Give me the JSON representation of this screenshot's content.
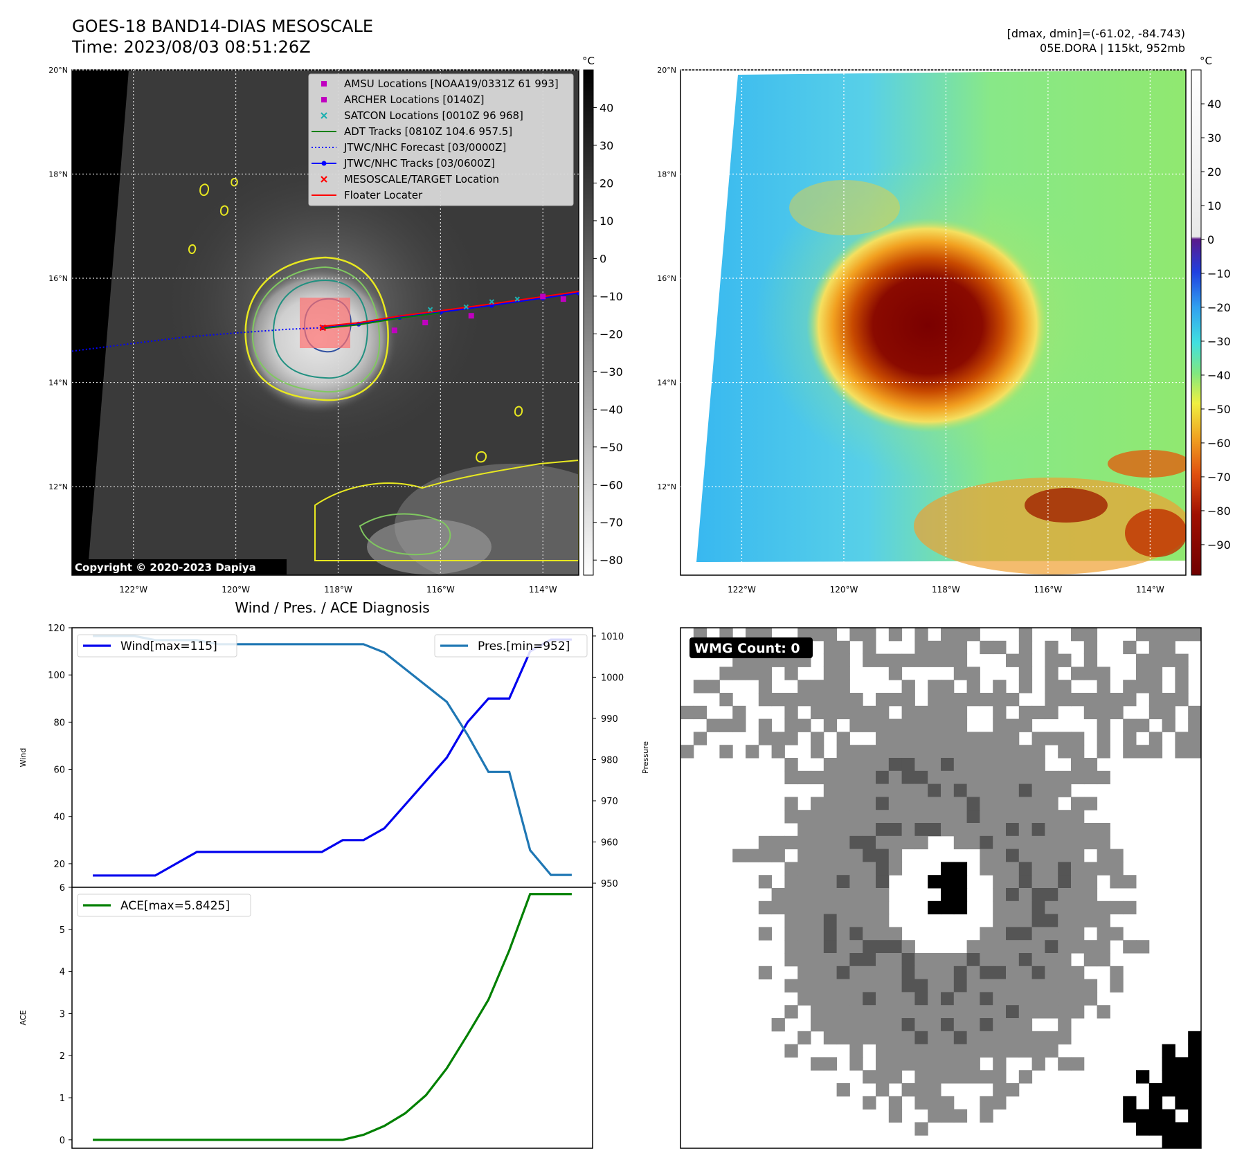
{
  "header": {
    "title_line1": "GOES-18 BAND14-DIAS MESOSCALE",
    "title_line2": "Time: 2023/08/03 08:51:26Z",
    "right_line1": "[dmax, dmin]=(-61.02, -84.743)",
    "right_line2": "05E.DORA | 115kt, 952mb"
  },
  "map": {
    "lat_labels": [
      "20°N",
      "18°N",
      "16°N",
      "14°N",
      "12°N"
    ],
    "lat_values": [
      20,
      18,
      16,
      14,
      12
    ],
    "lon_labels": [
      "122°W",
      "120°W",
      "118°W",
      "116°W",
      "114°W"
    ],
    "lon_values": [
      -122,
      -120,
      -118,
      -116,
      -114
    ],
    "lat_range": [
      10.3,
      20.0
    ],
    "lon_range": [
      -123.2,
      -113.3
    ],
    "copyright": "Copyright © 2020-2023 Dapiya"
  },
  "colorbar_gray": {
    "unit": "°C",
    "ticks": [
      "40",
      "30",
      "20",
      "10",
      "0",
      "−10",
      "−20",
      "−30",
      "−40",
      "−50",
      "−60",
      "−70",
      "−80"
    ],
    "tick_values": [
      40,
      30,
      20,
      10,
      0,
      -10,
      -20,
      -30,
      -40,
      -50,
      -60,
      -70,
      -80
    ],
    "range": [
      -84,
      50
    ]
  },
  "colorbar_color": {
    "unit": "°C",
    "ticks": [
      "40",
      "30",
      "20",
      "10",
      "0",
      "−10",
      "−20",
      "−30",
      "−40",
      "−50",
      "−60",
      "−70",
      "−80",
      "−90"
    ],
    "tick_values": [
      40,
      30,
      20,
      10,
      0,
      -10,
      -20,
      -30,
      -40,
      -50,
      -60,
      -70,
      -80,
      -90
    ],
    "range": [
      -99,
      50
    ]
  },
  "legend": [
    {
      "label": "AMSU Locations [NOAA19/0331Z 61 993]",
      "marker": "square",
      "color": "#c000c0"
    },
    {
      "label": "ARCHER Locations [0140Z]",
      "marker": "square",
      "color": "#c000c0"
    },
    {
      "label": "SATCON Locations [0010Z 96 968]",
      "marker": "x",
      "color": "#20b0b0"
    },
    {
      "label": "ADT Tracks [0810Z 104.6 957.5]",
      "marker": "line",
      "color": "#008000"
    },
    {
      "label": "JTWC/NHC Forecast [03/0000Z]",
      "marker": "dotted",
      "color": "#0000ff"
    },
    {
      "label": "JTWC/NHC Tracks [03/0600Z]",
      "marker": "line-dot",
      "color": "#0000ff"
    },
    {
      "label": "MESOSCALE/TARGET Location",
      "marker": "x",
      "color": "#ff0000"
    },
    {
      "label": "Floater Locater",
      "marker": "line",
      "color": "#ff0000"
    }
  ],
  "chart_data": [
    {
      "type": "line",
      "title": "Wind / Pres. / ACE Diagnosis",
      "ylabel": "Wind",
      "y2label": "Pressure",
      "ylim": [
        10,
        120
      ],
      "y2lim": [
        949,
        1012
      ],
      "yticks": [
        20,
        40,
        60,
        80,
        100,
        120
      ],
      "y2ticks": [
        950,
        960,
        970,
        980,
        990,
        1000,
        1010
      ],
      "x": [
        0,
        1,
        2,
        3,
        4,
        5,
        6,
        7,
        8,
        9,
        10,
        11,
        12,
        13,
        14,
        15,
        16,
        17,
        18,
        19,
        20,
        21,
        22,
        23
      ],
      "xlim": [
        -1,
        24
      ],
      "series": [
        {
          "name": "Wind[max=115]",
          "color": "#0000ee",
          "axis": "left",
          "values": [
            15,
            15,
            15,
            15,
            20,
            25,
            25,
            25,
            25,
            25,
            25,
            25,
            30,
            30,
            35,
            45,
            55,
            65,
            80,
            90,
            90,
            110,
            115,
            115
          ]
        },
        {
          "name": "Pres.[min=952]",
          "color": "#1f77b4",
          "axis": "right",
          "values": [
            1010,
            1010,
            1010,
            1009,
            1009,
            1009,
            1008,
            1008,
            1008,
            1008,
            1008,
            1008,
            1008,
            1008,
            1006,
            1002,
            998,
            994,
            986,
            977,
            977,
            958,
            952,
            952
          ]
        }
      ]
    },
    {
      "type": "line",
      "ylabel": "ACE",
      "ylim": [
        -0.2,
        6
      ],
      "yticks": [
        0,
        1,
        2,
        3,
        4,
        5,
        6
      ],
      "x": [
        0,
        1,
        2,
        3,
        4,
        5,
        6,
        7,
        8,
        9,
        10,
        11,
        12,
        13,
        14,
        15,
        16,
        17,
        18,
        19,
        20,
        21,
        22,
        23
      ],
      "xlim": [
        -1,
        24
      ],
      "series": [
        {
          "name": "ACE[max=5.8425]",
          "color": "#008000",
          "values": [
            0,
            0,
            0,
            0,
            0,
            0,
            0,
            0,
            0,
            0,
            0,
            0,
            0,
            0.12,
            0.33,
            0.63,
            1.06,
            1.7,
            2.5,
            3.33,
            4.5,
            5.84,
            5.84,
            5.84
          ]
        }
      ]
    }
  ],
  "wmg": {
    "badge": "WMG Count: 0"
  }
}
